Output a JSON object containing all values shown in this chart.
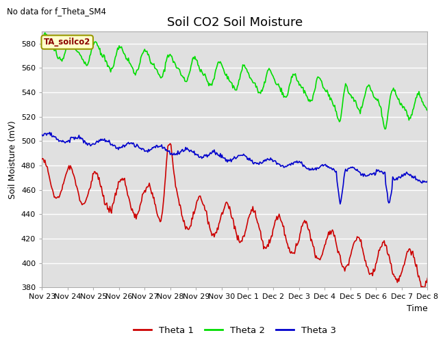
{
  "title": "Soil CO2 Soil Moisture",
  "ylabel": "Soil Moisture (mV)",
  "xlabel": "Time",
  "top_left_text": "No data for f_Theta_SM4",
  "annotation_box": "TA_soilco2",
  "ylim": [
    380,
    590
  ],
  "yticks": [
    380,
    400,
    420,
    440,
    460,
    480,
    500,
    520,
    540,
    560,
    580
  ],
  "x_labels": [
    "Nov 23",
    "Nov 24",
    "Nov 25",
    "Nov 26",
    "Nov 27",
    "Nov 28",
    "Nov 29",
    "Nov 30",
    "Dec 1",
    "Dec 2",
    "Dec 3",
    "Dec 4",
    "Dec 5",
    "Dec 6",
    "Dec 7",
    "Dec 8"
  ],
  "line_colors": {
    "theta1": "#cc0000",
    "theta2": "#00dd00",
    "theta3": "#0000cc"
  },
  "legend_labels": [
    "Theta 1",
    "Theta 2",
    "Theta 3"
  ],
  "plot_bg_color": "#e0e0e0",
  "fig_bg_color": "#ffffff",
  "grid_color": "#ffffff",
  "title_fontsize": 13,
  "label_fontsize": 9,
  "tick_fontsize": 8
}
